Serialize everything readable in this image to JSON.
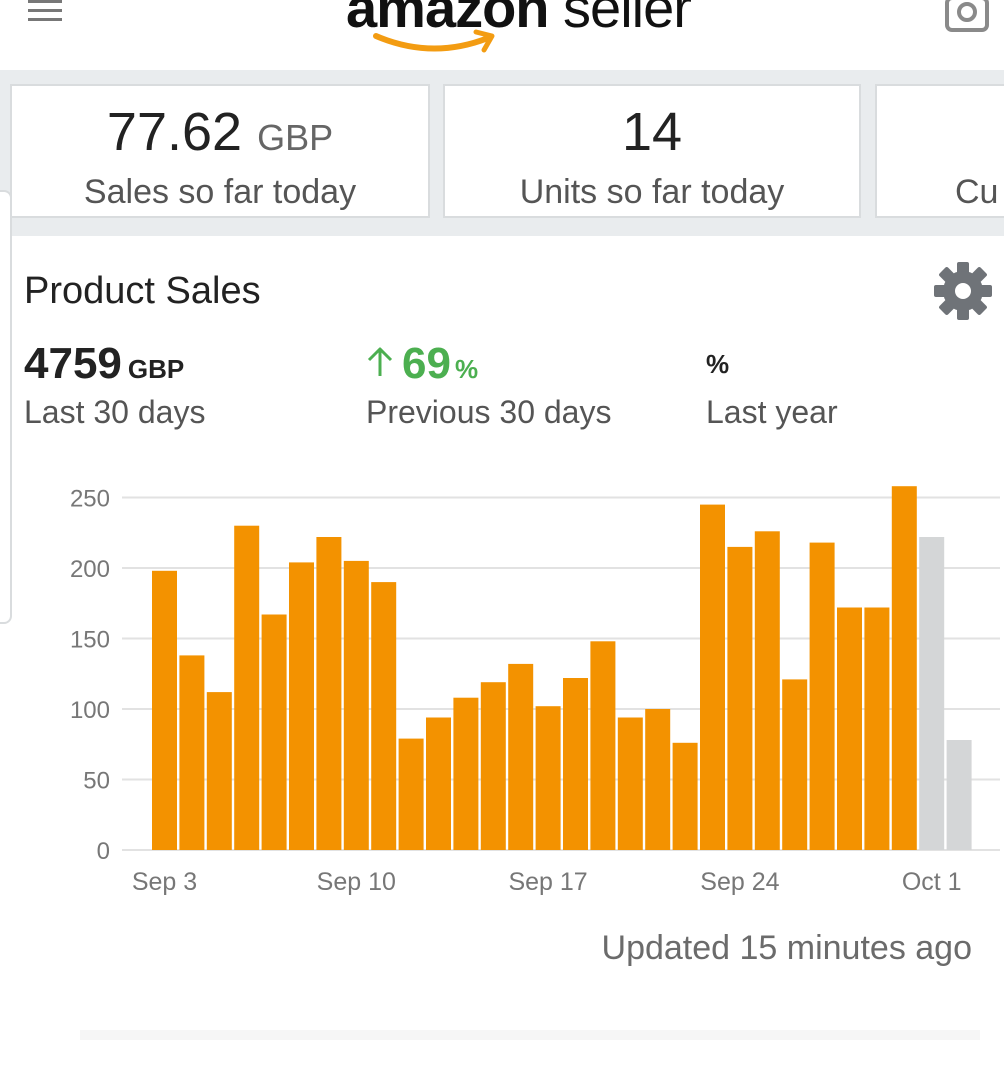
{
  "header": {
    "logo_brand": "amazon",
    "logo_suffix": " seller",
    "menu_icon": "hamburger-menu-icon",
    "camera_icon": "camera-icon",
    "colors": {
      "smile": "#f39c12"
    }
  },
  "metrics": [
    {
      "value": "77.62",
      "unit": "GBP",
      "label": "Sales so far today"
    },
    {
      "value": "14",
      "unit": "",
      "label": "Units so far today"
    },
    {
      "value": "",
      "unit": "",
      "label": "Cu"
    }
  ],
  "product_sales": {
    "title": "Product Sales",
    "settings_icon": "gear-icon",
    "stats": [
      {
        "value": "4759",
        "unit": "GBP",
        "label": "Last 30 days"
      },
      {
        "value": "69",
        "unit": "%",
        "trend": "up",
        "label": "Previous 30 days"
      },
      {
        "value": "",
        "unit": "%",
        "label": "Last year"
      }
    ],
    "updated": "Updated 15 minutes ago"
  },
  "chart_data": {
    "type": "bar",
    "ylim": [
      0,
      250
    ],
    "y_ticks": [
      "250",
      "200",
      "150",
      "100",
      "50",
      "0"
    ],
    "x_tick_labels": [
      {
        "label": "Sep 3",
        "index": 0
      },
      {
        "label": "Sep 10",
        "index": 7
      },
      {
        "label": "Sep 17",
        "index": 14
      },
      {
        "label": "Sep 24",
        "index": 21
      },
      {
        "label": "Oct 1",
        "index": 28
      }
    ],
    "grid": true,
    "colors": {
      "current": "#f39200",
      "projected": "#d4d6d7",
      "grid": "#e2e2e2",
      "axis_text": "#777777"
    },
    "series": [
      {
        "values": [
          198,
          138,
          112,
          230,
          167,
          204,
          222,
          205,
          190,
          79,
          94,
          108,
          119,
          132,
          102,
          122,
          148,
          94,
          100,
          76,
          245,
          215,
          226,
          121,
          218,
          172,
          172,
          258,
          222,
          78
        ],
        "highlight": [
          "current",
          "current",
          "current",
          "current",
          "current",
          "current",
          "current",
          "current",
          "current",
          "current",
          "current",
          "current",
          "current",
          "current",
          "current",
          "current",
          "current",
          "current",
          "current",
          "current",
          "current",
          "current",
          "current",
          "current",
          "current",
          "current",
          "current",
          "current",
          "projected",
          "projected"
        ]
      }
    ]
  }
}
